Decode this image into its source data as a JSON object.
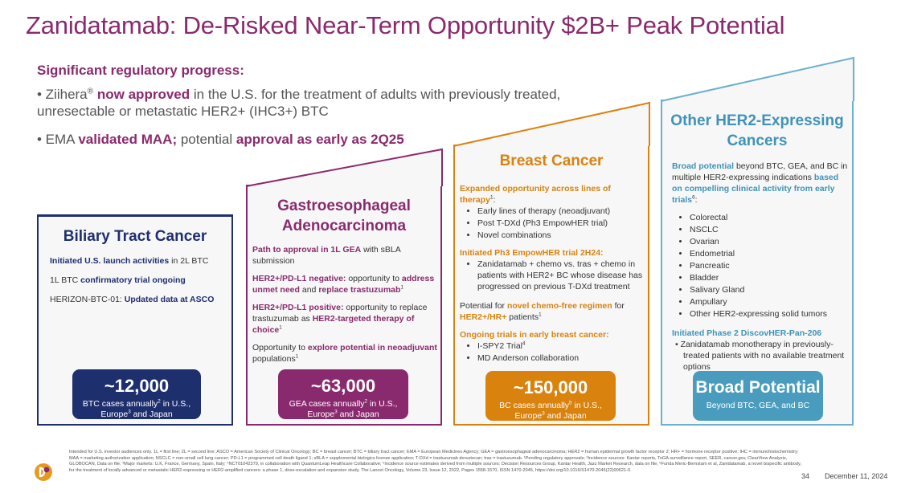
{
  "title": "Zanidatamab: De-Risked Near-Term Opportunity $2B+ Peak Potential",
  "subhead": "Significant regulatory progress:",
  "bullets": {
    "b1_pre": "• Ziihera",
    "b1_reg": "®",
    "b1_bold": "now approved",
    "b1_post": "in the U.S. for the treatment of adults with previously treated, unresectable or metastatic HER2+ (IHC3+) BTC",
    "b2_pre": "• EMA",
    "b2_bold1": "validated MAA;",
    "b2_mid": "potential",
    "b2_bold2": "approval as early as 2Q25"
  },
  "cards": {
    "btc": {
      "title": "Biliary Tract Cancer",
      "p1_bold": "Initiated U.S. launch activities",
      "p1_rest": "in 2L BTC",
      "p2_pre": "1L BTC",
      "p2_bold": "confirmatory trial ongoing",
      "p3_pre": "HERIZON-BTC-01:",
      "p3_bold": "Updated data at ASCO",
      "stat_num": "~12,000",
      "stat_cap1": "BTC cases annually",
      "stat_sup1": "2",
      "stat_cap2": "in U.S.,",
      "stat_cap3": "Europe",
      "stat_sup2": "3",
      "stat_cap4": "and Japan"
    },
    "gea": {
      "title_line1": "Gastroesophageal",
      "title_line2": "Adenocarcinoma",
      "p1_bold": "Path to approval in 1L GEA",
      "p1_rest": "with sBLA submission",
      "p2_bold1": "HER2+/PD-L1 negative:",
      "p2_mid": "opportunity to",
      "p2_bold2": "address unmet need",
      "p2_and": "and",
      "p2_bold3": "replace trastuzumab",
      "p2_sup": "1",
      "p3_bold1": "HER2+/PD-L1 positive:",
      "p3_mid": "opportunity to replace trastuzumab as",
      "p3_bold2": "HER2-targeted therapy of choice",
      "p3_sup": "1",
      "p4_pre": "Opportunity to",
      "p4_bold": "explore potential in neoadjuvant",
      "p4_post": "populations",
      "p4_sup": "1",
      "stat_num": "~63,000",
      "stat_cap1": "GEA cases annually",
      "stat_sup1": "2",
      "stat_cap2": "in U.S.,",
      "stat_cap3": "Europe",
      "stat_sup2": "3",
      "stat_cap4": "and Japan"
    },
    "bc": {
      "title": "Breast Cancer",
      "h1": "Expanded opportunity across lines of therapy",
      "h1_sup": "1",
      "h1_colon": ":",
      "list1": [
        "Early lines of therapy (neoadjuvant)",
        "Post T-DXd (Ph3 EmpowHER trial)",
        "Novel combinations"
      ],
      "h2": "Initiated Ph3 EmpowHER trial 2H24:",
      "list2": [
        "Zanidatamab + chemo vs. tras + chemo in patients with HER2+ BC whose disease has progressed on previous T-DXd treatment"
      ],
      "p_pre": "Potential for",
      "p_bold1": "novel chemo-free regimen",
      "p_mid": "for",
      "p_bold2": "HER2+/HR+",
      "p_post": "patients",
      "p_sup": "1",
      "h3": "Ongoing trials in early breast cancer:",
      "list3_a": "I-SPY2 Trial",
      "list3_a_sup": "4",
      "list3_b": "MD Anderson collaboration",
      "stat_num": "~150,000",
      "stat_cap1": "BC cases annually",
      "stat_sup1": "5",
      "stat_cap2": "in U.S.,",
      "stat_cap3": "Europe",
      "stat_sup2": "3",
      "stat_cap4": "and Japan"
    },
    "other": {
      "title_line1": "Other HER2-Expressing",
      "title_line2": "Cancers",
      "p_bold1": "Broad potential",
      "p_mid": "beyond BTC, GEA, and BC in multiple HER2-expressing indications",
      "p_bold2": "based on compelling clinical activity from early trials",
      "p_sup": "6",
      "p_colon": ":",
      "list": [
        "Colorectal",
        "NSCLC",
        "Ovarian",
        "Endometrial",
        "Pancreatic",
        "Bladder",
        "Salivary Gland",
        "Ampullary",
        "Other HER2-expressing solid tumors"
      ],
      "h2": "Initiated Phase 2 DiscovHER-Pan-206",
      "list2": [
        "Zanidatamab monotherapy in previously-treated patients with no available treatment options"
      ],
      "stat_num": "Broad Potential",
      "stat_cap": "Beyond BTC, GEA, and BC"
    }
  },
  "footnote": "Intended for U.S. investor audiences only. 1L = first line; 2L = second line; ASCO = American Society of Clinical Oncology; BC = breast cancer; BTC = biliary tract cancer; EMA = European Medicines Agency; GEA = gastroesophageal adenocarcinoma; HER2 = human epidermal growth factor receptor 2; HR+ = hormone receptor positive; IHC = immunohistochemistry; MAA = marketing authorization application; NSCLC = non-small cell lung cancer; PD-L1 = programmed cell death ligand 1; sBLA = supplemental biologics license application; T-DXd = trastuzumab deruxtecan; tras = trastuzumab. ¹Pending regulatory approvals; ²Incidence sources: Kantar reports, ToGA surveillance report, SEER, cancer.gov, ClearView Analysis, GLOBOCAN, Data on file; ³Major markets: U.K, France, Germany, Spain, Italy; ⁴NCT01042379, in collaboration with QuantumLeap Healthcare Collaborative; ⁵Incidence source estimates derived from multiple sources: Decision Resources Group, Kantar Health, Jazz Market Research, data on file; ⁶Funda Meric-Bernstam et al, Zanidatamab, a novel bispecific antibody, for the treatment of locally advanced or metastatic HER2-expressing or HER2-amplified cancers: a phase 1, dose-escalation and expansion study, The Lancet Oncology, Volume 23, Issue 12, 2022, Pages 1558-1570, ISSN 1470-2045, https://doi.org/10.1016/S1470-2045(22)00621-0.",
  "page_number": "34",
  "date": "December 11, 2024",
  "colors": {
    "purple": "#8a2a6e",
    "navy": "#1e2f6e",
    "orange": "#d9820e",
    "blue": "#4a9cbf"
  }
}
